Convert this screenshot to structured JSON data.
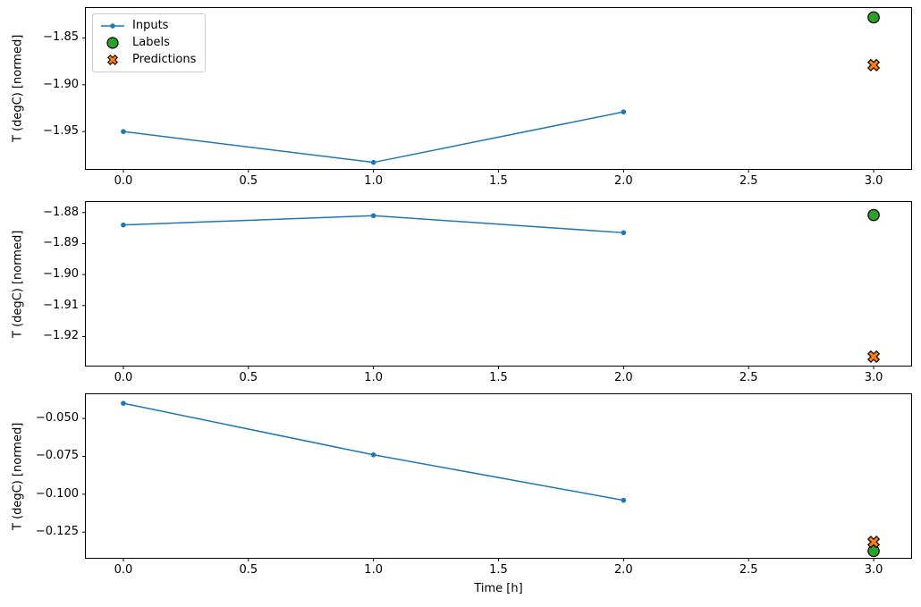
{
  "figure": {
    "background": "#ffffff",
    "axis_color": "#000000",
    "tick_label_color": "#000000"
  },
  "chart_data": [
    {
      "type": "line",
      "title": "",
      "xlabel": "",
      "ylabel": "T (degC) [normed]",
      "xlim": [
        -0.15,
        3.15
      ],
      "ylim": [
        -1.99,
        -1.818
      ],
      "grid": false,
      "legend_position": "upper left",
      "xticks": [
        {
          "v": 0.0,
          "label": "0.0"
        },
        {
          "v": 0.5,
          "label": "0.5"
        },
        {
          "v": 1.0,
          "label": "1.0"
        },
        {
          "v": 1.5,
          "label": "1.5"
        },
        {
          "v": 2.0,
          "label": "2.0"
        },
        {
          "v": 2.5,
          "label": "2.5"
        },
        {
          "v": 3.0,
          "label": "3.0"
        }
      ],
      "yticks": [
        {
          "v": -1.85,
          "label": "−1.85"
        },
        {
          "v": -1.9,
          "label": "−1.90"
        },
        {
          "v": -1.95,
          "label": "−1.95"
        }
      ],
      "series": [
        {
          "name": "Inputs",
          "marker": "dot-line",
          "color": "#1f77b4",
          "x": [
            0,
            1,
            2
          ],
          "y": [
            -1.95,
            -1.983,
            -1.929
          ]
        },
        {
          "name": "Labels",
          "marker": "circle",
          "color": "#2ca02c",
          "edge": "#000000",
          "x": [
            3
          ],
          "y": [
            -1.828
          ]
        },
        {
          "name": "Predictions",
          "marker": "X",
          "color": "#ff7f0e",
          "edge": "#000000",
          "x": [
            3
          ],
          "y": [
            -1.879
          ]
        }
      ]
    },
    {
      "type": "line",
      "title": "",
      "xlabel": "",
      "ylabel": "T (degC) [normed]",
      "xlim": [
        -0.15,
        3.15
      ],
      "ylim": [
        -1.9294,
        -1.8766
      ],
      "grid": false,
      "legend_position": "none",
      "xticks": [
        {
          "v": 0.0,
          "label": "0.0"
        },
        {
          "v": 0.5,
          "label": "0.5"
        },
        {
          "v": 1.0,
          "label": "1.0"
        },
        {
          "v": 1.5,
          "label": "1.5"
        },
        {
          "v": 2.0,
          "label": "2.0"
        },
        {
          "v": 2.5,
          "label": "2.5"
        },
        {
          "v": 3.0,
          "label": "3.0"
        }
      ],
      "yticks": [
        {
          "v": -1.88,
          "label": "−1.88"
        },
        {
          "v": -1.89,
          "label": "−1.89"
        },
        {
          "v": -1.9,
          "label": "−1.90"
        },
        {
          "v": -1.91,
          "label": "−1.91"
        },
        {
          "v": -1.92,
          "label": "−1.92"
        }
      ],
      "series": [
        {
          "name": "Inputs",
          "marker": "dot-line",
          "color": "#1f77b4",
          "x": [
            0,
            1,
            2
          ],
          "y": [
            -1.884,
            -1.881,
            -1.8865
          ]
        },
        {
          "name": "Labels",
          "marker": "circle",
          "color": "#2ca02c",
          "edge": "#000000",
          "x": [
            3
          ],
          "y": [
            -1.8808
          ]
        },
        {
          "name": "Predictions",
          "marker": "X",
          "color": "#ff7f0e",
          "edge": "#000000",
          "x": [
            3
          ],
          "y": [
            -1.9265
          ]
        }
      ]
    },
    {
      "type": "line",
      "title": "",
      "xlabel": "Time [h]",
      "ylabel": "T (degC) [normed]",
      "xlim": [
        -0.15,
        3.15
      ],
      "ylim": [
        -0.142,
        -0.034
      ],
      "grid": false,
      "legend_position": "none",
      "xticks": [
        {
          "v": 0.0,
          "label": "0.0"
        },
        {
          "v": 0.5,
          "label": "0.5"
        },
        {
          "v": 1.0,
          "label": "1.0"
        },
        {
          "v": 1.5,
          "label": "1.5"
        },
        {
          "v": 2.0,
          "label": "2.0"
        },
        {
          "v": 2.5,
          "label": "2.5"
        },
        {
          "v": 3.0,
          "label": "3.0"
        }
      ],
      "yticks": [
        {
          "v": -0.05,
          "label": "−0.050"
        },
        {
          "v": -0.075,
          "label": "−0.075"
        },
        {
          "v": -0.1,
          "label": "−0.100"
        },
        {
          "v": -0.125,
          "label": "−0.125"
        }
      ],
      "series": [
        {
          "name": "Inputs",
          "marker": "dot-line",
          "color": "#1f77b4",
          "x": [
            0,
            1,
            2
          ],
          "y": [
            -0.04,
            -0.074,
            -0.104
          ]
        },
        {
          "name": "Labels",
          "marker": "circle",
          "color": "#2ca02c",
          "edge": "#000000",
          "x": [
            3
          ],
          "y": [
            -0.1375
          ]
        },
        {
          "name": "Predictions",
          "marker": "X",
          "color": "#ff7f0e",
          "edge": "#000000",
          "x": [
            3
          ],
          "y": [
            -0.1315
          ]
        }
      ]
    }
  ]
}
